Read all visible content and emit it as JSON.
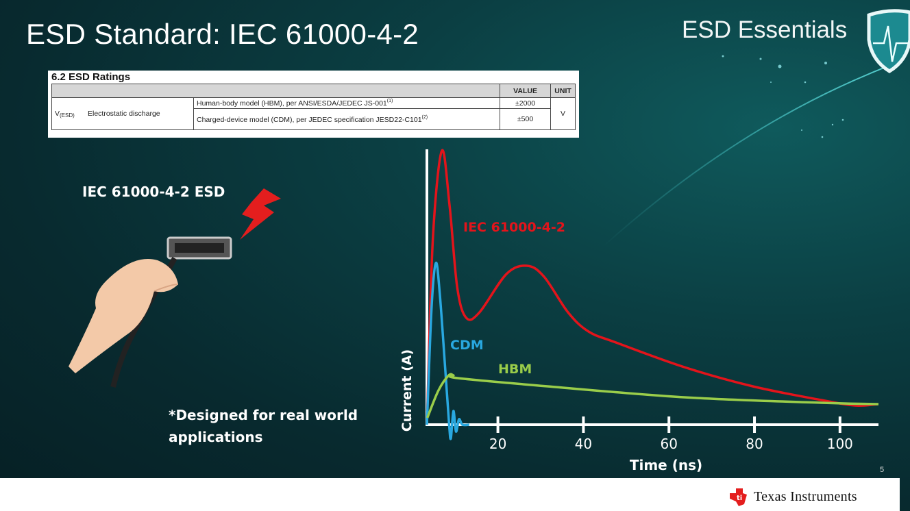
{
  "slide": {
    "title": "ESD Standard: IEC 61000-4-2",
    "brand": "ESD Essentials",
    "page_number": "5",
    "footer_logo_text": "Texas Instruments",
    "left_label": "IEC 61000-4-2 ESD",
    "note": "*Designed for real world applications",
    "colors": {
      "background": "#0b3f43",
      "iec": "#e3141b",
      "cdm": "#29a8e0",
      "hbm": "#9acd4a"
    },
    "icons": [
      "shield-heartbeat-icon",
      "hand-hdmi-cable-icon",
      "lightning-bolt-icon",
      "ti-logo-icon"
    ]
  },
  "table": {
    "title": "6.2   ESD Ratings",
    "headers": {
      "value": "VALUE",
      "unit": "UNIT"
    },
    "symbol": "V",
    "symbol_sub": "(ESD)",
    "parameter": "Electrostatic discharge",
    "rows": [
      {
        "condition": "Human-body model (HBM), per ANSI/ESDA/JEDEC JS-001",
        "note": "(1)",
        "value": "±2000"
      },
      {
        "condition": "Charged-device model (CDM), per JEDEC specification JESD22-C101",
        "note": "(2)",
        "value": "±500"
      }
    ],
    "unit": "V"
  },
  "chart_data": {
    "type": "line",
    "title": "",
    "xlabel": "Time (ns)",
    "ylabel": "Current (A)",
    "xlim": [
      3.4,
      109
    ],
    "ylim": [
      -0.1,
      1.0
    ],
    "x_ticks": [
      20,
      40,
      60,
      80,
      100
    ],
    "y_ticks": [],
    "grid": false,
    "legend": "inline labels",
    "series": [
      {
        "name": "IEC 61000-4-2",
        "color": "#e3141b",
        "x": [
          3.5,
          4.8,
          6.9,
          8.7,
          10.5,
          12.6,
          15.7,
          22,
          26.8,
          30.8,
          36.4,
          41.2,
          47.6,
          63.6,
          79.6,
          95.6,
          103.5,
          108.8
        ],
        "y": [
          0.05,
          0.68,
          1.0,
          0.8,
          0.5,
          0.39,
          0.41,
          0.55,
          0.58,
          0.54,
          0.41,
          0.34,
          0.3,
          0.21,
          0.14,
          0.09,
          0.07,
          0.075
        ]
      },
      {
        "name": "CDM",
        "color": "#29a8e0",
        "x": [
          3.4,
          4.5,
          5.5,
          6.4,
          7.7,
          8.6,
          9.0,
          9.6,
          10.2,
          10.9,
          11.7,
          13.3
        ],
        "y": [
          0,
          0.43,
          0.59,
          0.48,
          0.2,
          0,
          -0.05,
          0.05,
          -0.025,
          0.02,
          0,
          0
        ]
      },
      {
        "name": "HBM",
        "color": "#9acd4a",
        "x": [
          3.5,
          6.1,
          8.5,
          9.6,
          10.6,
          31.6,
          63.6,
          95.6,
          109
        ],
        "y": [
          0.025,
          0.125,
          0.18,
          0.18,
          0.17,
          0.14,
          0.1,
          0.08,
          0.075
        ]
      }
    ]
  }
}
